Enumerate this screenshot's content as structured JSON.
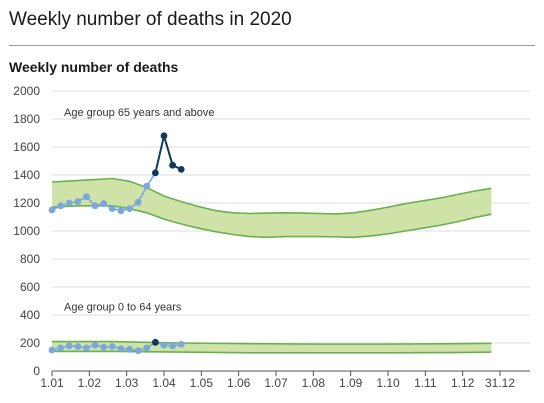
{
  "header": {
    "title": "Weekly number of deaths in 2020"
  },
  "chart_data": {
    "type": "line",
    "title": "Weekly number of deaths",
    "xlabel": "",
    "ylabel": "",
    "ylim": [
      0,
      2000
    ],
    "yticks": [
      0,
      200,
      400,
      600,
      800,
      1000,
      1200,
      1400,
      1600,
      1800,
      2000
    ],
    "xticks": [
      "1.01",
      "1.02",
      "1.03",
      "1.04",
      "1.05",
      "1.06",
      "1.07",
      "1.08",
      "1.09",
      "1.10",
      "1.11",
      "1.12",
      "31.12"
    ],
    "grid": true,
    "colors": {
      "band_fill": "#cfe3a8",
      "band_stroke": "#6ab04c",
      "point_normal": "#7ba7dc",
      "point_excess": "#123a56",
      "line": "#123a56",
      "grid": "#dddddd"
    },
    "groups": [
      {
        "name": "Age group 65 years and above",
        "expected_band": {
          "week": [
            1,
            4,
            8,
            10,
            12,
            14,
            16,
            18,
            20,
            22,
            24,
            26,
            28,
            30,
            32,
            34,
            36,
            38,
            40,
            42,
            44,
            46,
            48,
            50,
            52
          ],
          "lower": [
            1170,
            1180,
            1180,
            1160,
            1130,
            1085,
            1050,
            1020,
            995,
            975,
            960,
            955,
            960,
            960,
            960,
            958,
            955,
            965,
            980,
            1000,
            1020,
            1040,
            1065,
            1095,
            1120
          ],
          "upper": [
            1350,
            1360,
            1375,
            1355,
            1310,
            1250,
            1210,
            1175,
            1145,
            1130,
            1125,
            1128,
            1130,
            1128,
            1125,
            1122,
            1130,
            1148,
            1170,
            1195,
            1215,
            1235,
            1260,
            1285,
            1305
          ]
        },
        "weekly_deaths": {
          "week": [
            1,
            2,
            3,
            4,
            5,
            6,
            7,
            8,
            9,
            10,
            11,
            12,
            13,
            14,
            15,
            16,
            17,
            18,
            19
          ],
          "value": [
            1150,
            1180,
            1200,
            1210,
            1245,
            1180,
            1195,
            1160,
            1145,
            1160,
            1205,
            1320,
            1415,
            1680,
            1470,
            1440,
            null,
            null,
            null
          ],
          "excess_from_week": 13
        }
      },
      {
        "name": "Age group 0 to 64 years",
        "expected_band": {
          "week": [
            1,
            8,
            16,
            24,
            32,
            40,
            48,
            52
          ],
          "lower": [
            140,
            140,
            135,
            130,
            130,
            130,
            132,
            135
          ],
          "upper": [
            210,
            210,
            200,
            195,
            192,
            192,
            195,
            198
          ]
        },
        "weekly_deaths": {
          "week": [
            1,
            2,
            3,
            4,
            5,
            6,
            7,
            8,
            9,
            10,
            11,
            12,
            13,
            14,
            15,
            16
          ],
          "value": [
            150,
            165,
            180,
            175,
            165,
            185,
            170,
            175,
            160,
            155,
            145,
            165,
            205,
            185,
            180,
            190
          ],
          "excess_from_week": 13,
          "excess_to_week": 13
        }
      }
    ]
  }
}
